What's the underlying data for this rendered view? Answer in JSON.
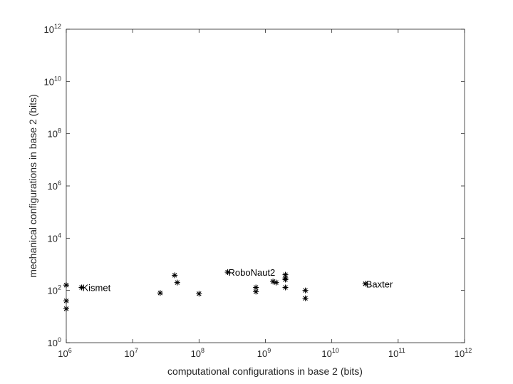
{
  "chart_data": {
    "type": "scatter",
    "xlabel": "computational configurations in base 2 (bits)",
    "ylabel": "mechanical configurations in base 2 (bits)",
    "x_scale": "log",
    "y_scale": "log",
    "xlim": [
      1000000,
      1000000000000
    ],
    "ylim": [
      1,
      1000000000000
    ],
    "x_ticks": [
      {
        "base": "10",
        "exp": "6",
        "value": 1000000
      },
      {
        "base": "10",
        "exp": "7",
        "value": 10000000
      },
      {
        "base": "10",
        "exp": "8",
        "value": 100000000
      },
      {
        "base": "10",
        "exp": "9",
        "value": 1000000000
      },
      {
        "base": "10",
        "exp": "10",
        "value": 10000000000
      },
      {
        "base": "10",
        "exp": "11",
        "value": 100000000000
      },
      {
        "base": "10",
        "exp": "12",
        "value": 1000000000000
      }
    ],
    "y_ticks": [
      {
        "base": "10",
        "exp": "0",
        "value": 1
      },
      {
        "base": "10",
        "exp": "2",
        "value": 100
      },
      {
        "base": "10",
        "exp": "4",
        "value": 10000
      },
      {
        "base": "10",
        "exp": "6",
        "value": 1000000
      },
      {
        "base": "10",
        "exp": "8",
        "value": 100000000
      },
      {
        "base": "10",
        "exp": "10",
        "value": 10000000000
      },
      {
        "base": "10",
        "exp": "12",
        "value": 1000000000000
      }
    ],
    "grid": false,
    "marker": "*",
    "marker_color": "#000000",
    "points": [
      {
        "x": 1000000,
        "y": 160
      },
      {
        "x": 1000000,
        "y": 40
      },
      {
        "x": 1000000,
        "y": 20
      },
      {
        "x": 1700000,
        "y": 130,
        "label": "Kismet"
      },
      {
        "x": 26000000,
        "y": 80
      },
      {
        "x": 43000000,
        "y": 380
      },
      {
        "x": 47000000,
        "y": 200
      },
      {
        "x": 100000000,
        "y": 75
      },
      {
        "x": 270000000,
        "y": 500,
        "label": "RoboNaut2"
      },
      {
        "x": 720000000,
        "y": 130
      },
      {
        "x": 720000000,
        "y": 90
      },
      {
        "x": 1300000000,
        "y": 220
      },
      {
        "x": 1450000000,
        "y": 200
      },
      {
        "x": 2000000000,
        "y": 400
      },
      {
        "x": 2000000000,
        "y": 300
      },
      {
        "x": 2000000000,
        "y": 260
      },
      {
        "x": 2000000000,
        "y": 130
      },
      {
        "x": 4000000000,
        "y": 100
      },
      {
        "x": 4000000000,
        "y": 50
      },
      {
        "x": 32000000000,
        "y": 180,
        "label": "Baxter"
      }
    ]
  }
}
